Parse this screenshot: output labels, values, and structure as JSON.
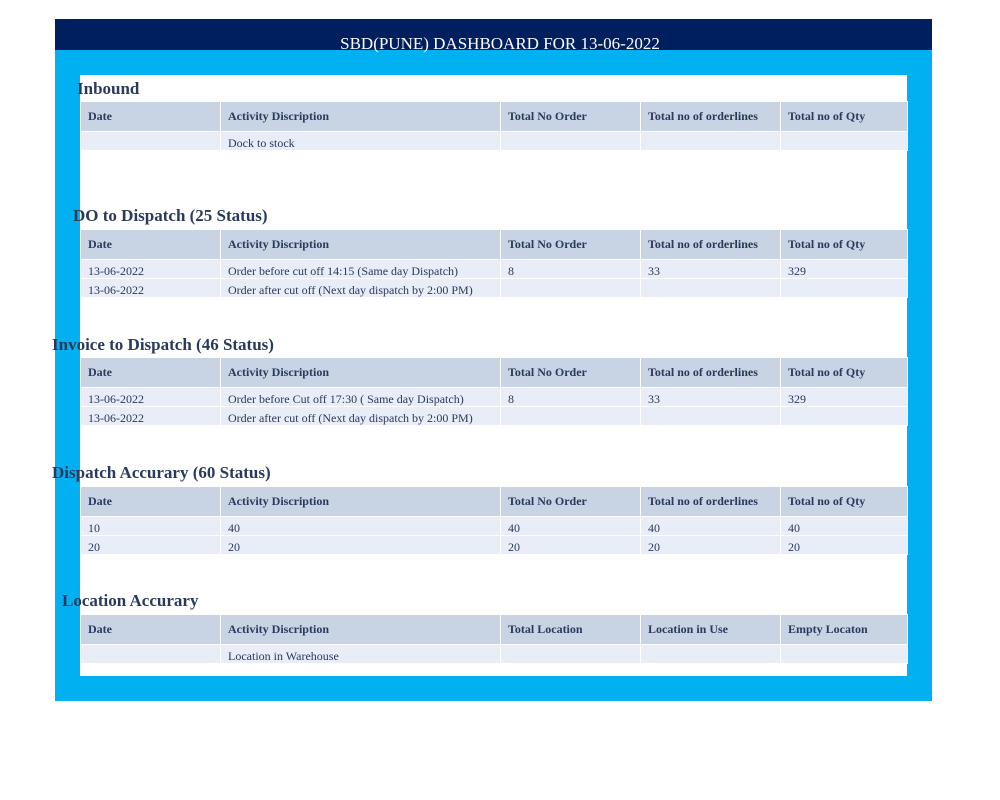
{
  "title": "SBD(PUNE) DASHBOARD FOR 13-06-2022",
  "colors": {
    "header": "#001f5f",
    "frame": "#00b0f0",
    "table_header": "#c8d3e3",
    "table_row": "#e8edf7"
  },
  "sections": [
    {
      "title": "Inbound",
      "columns": [
        "Date",
        "Activity Discription",
        "Total No Order",
        "Total no of orderlines",
        "Total no of Qty"
      ],
      "rows": [
        [
          "",
          "Dock to stock",
          "",
          "",
          ""
        ]
      ]
    },
    {
      "title": "DO to Dispatch (25 Status)",
      "columns": [
        "Date",
        "Activity Discription",
        "Total No Order",
        "Total no of orderlines",
        "Total no of Qty"
      ],
      "rows": [
        [
          "13-06-2022",
          "Order before cut off 14:15 (Same day Dispatch)",
          "8",
          "33",
          "329"
        ],
        [
          "13-06-2022",
          "Order after cut off (Next day dispatch by 2:00 PM)",
          "",
          "",
          ""
        ]
      ]
    },
    {
      "title": "Invoice to Dispatch (46 Status)",
      "columns": [
        "Date",
        "Activity Discription",
        "Total No Order",
        "Total no of orderlines",
        "Total no of Qty"
      ],
      "rows": [
        [
          "13-06-2022",
          "Order before Cut off 17:30 ( Same day Dispatch)",
          "8",
          "33",
          "329"
        ],
        [
          "13-06-2022",
          "Order after cut off (Next day dispatch by 2:00 PM)",
          "",
          "",
          ""
        ]
      ]
    },
    {
      "title": "Dispatch Accurary (60 Status)",
      "columns": [
        "Date",
        "Activity Discription",
        "Total No Order",
        "Total no of orderlines",
        "Total no of Qty"
      ],
      "rows": [
        [
          "10",
          "40",
          "40",
          "40",
          "40"
        ],
        [
          "20",
          "20",
          "20",
          "20",
          "20"
        ]
      ]
    },
    {
      "title": "Location Accurary",
      "columns": [
        "Date",
        "Activity Discription",
        "Total Location",
        "Location in Use",
        "Empty Locaton"
      ],
      "rows": [
        [
          "",
          "Location in Warehouse",
          "",
          "",
          ""
        ]
      ]
    }
  ]
}
